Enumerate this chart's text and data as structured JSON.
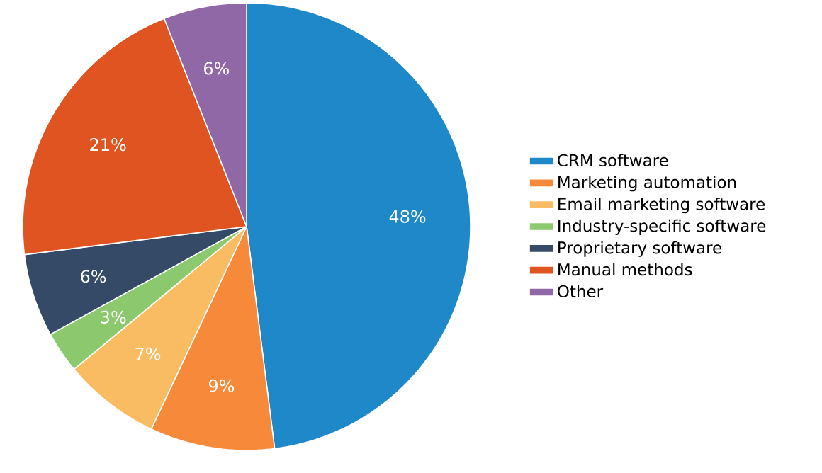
{
  "chart_data": {
    "type": "pie",
    "categories": [
      "CRM software",
      "Marketing automation",
      "Email marketing software",
      "Industry-specific software",
      "Proprietary software",
      "Manual methods",
      "Other"
    ],
    "values": [
      48,
      9,
      7,
      3,
      6,
      21,
      6
    ],
    "value_labels": [
      "48%",
      "9%",
      "7%",
      "3%",
      "6%",
      "21%",
      "6%"
    ],
    "colors": [
      "#1f88c9",
      "#f68a3a",
      "#f9bc62",
      "#8cc86e",
      "#344a66",
      "#df5420",
      "#9168a6"
    ],
    "legend": "right"
  }
}
